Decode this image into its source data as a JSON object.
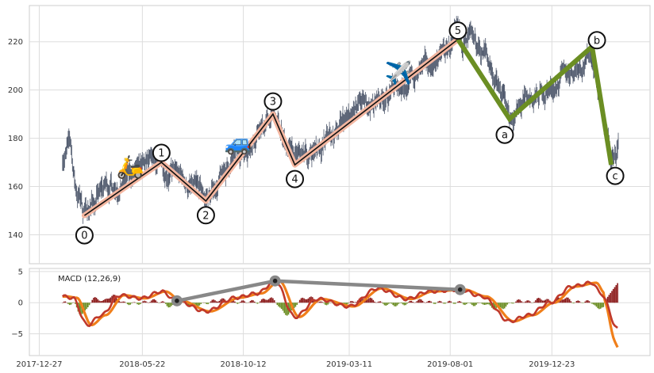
{
  "chart_data": [
    {
      "type": "line",
      "panel": "price",
      "x_ticks": [
        "2017-12-27",
        "2018-05-22",
        "2018-10-12",
        "2019-03-11",
        "2019-08-01",
        "2019-12-23"
      ],
      "y_ticks": [
        140,
        160,
        180,
        200,
        220
      ],
      "ylim": [
        128,
        235
      ],
      "xlim": [
        "2017-12-13",
        "2020-05-10"
      ],
      "grid": true,
      "impulse_waves": [
        {
          "label": "0",
          "date": "2018-03-01",
          "value": 148
        },
        {
          "label": "1",
          "date": "2018-06-18",
          "value": 170
        },
        {
          "label": "2",
          "date": "2018-08-20",
          "value": 154
        },
        {
          "label": "3",
          "date": "2018-11-23",
          "value": 190
        },
        {
          "label": "4",
          "date": "2018-12-24",
          "value": 169
        },
        {
          "label": "5",
          "date": "2019-08-12",
          "value": 221
        }
      ],
      "corrective_waves": [
        {
          "label": "a",
          "date": "2019-10-24",
          "value": 188
        },
        {
          "label": "b",
          "date": "2020-02-18",
          "value": 218
        },
        {
          "label": "c",
          "date": "2020-03-16",
          "value": 169
        }
      ],
      "emoji_annotations": [
        {
          "symbol": "🛵",
          "date": "2018-05-05",
          "value": 168
        },
        {
          "symbol": "🚙",
          "date": "2018-10-05",
          "value": 178
        },
        {
          "symbol": "✈️",
          "date": "2019-05-20",
          "value": 207
        }
      ],
      "colors": {
        "price": "#4c566a",
        "impulse_band": "#f4b6a0",
        "impulse_line": "#111111",
        "corrective": "#6b8e23"
      }
    },
    {
      "type": "line",
      "panel": "macd",
      "title": "MACD (12,26,9)",
      "y_ticks": [
        -5,
        0,
        5
      ],
      "ylim": [
        -8.5,
        5.5
      ],
      "grid": true,
      "divergence_points": [
        {
          "date": "2018-07-10",
          "value": 0.3
        },
        {
          "date": "2018-11-26",
          "value": 3.5
        },
        {
          "date": "2019-08-15",
          "value": 2.1
        }
      ],
      "colors": {
        "macd": "#c0392b",
        "signal": "#f07f1a",
        "hist_pos": "#8b1a1a",
        "hist_neg": "#6b8e23",
        "divergence": "#888888"
      }
    }
  ]
}
